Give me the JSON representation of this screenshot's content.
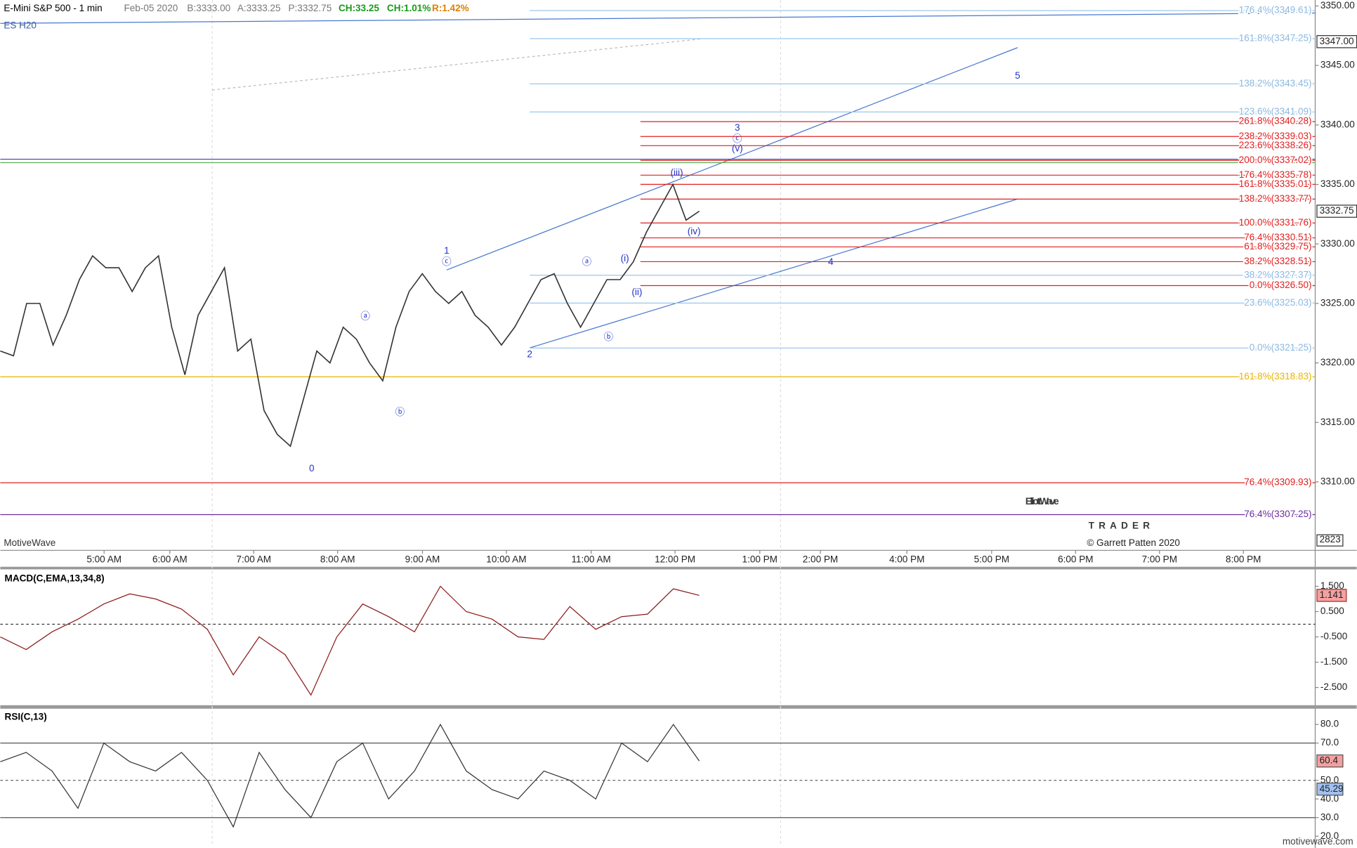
{
  "header": {
    "symbol": "E-Mini S&P 500 - 1 min",
    "date": "Feb-05 2020",
    "bid": "B:3333.00",
    "ask": "A:3333.25",
    "price": "P:3332.75",
    "change": "CH:33.25",
    "change_pct": "CH:1.01%",
    "range": "R:1.42%",
    "contract": "ES H20"
  },
  "price_panel": {
    "ylim": [
      3304.25,
      3350.5
    ],
    "yticks": [
      {
        "value": 3350,
        "label": "3350.00"
      },
      {
        "value": 3345,
        "label": "3345.00"
      },
      {
        "value": 3340,
        "label": "3340.00"
      },
      {
        "value": 3335,
        "label": "3335.00"
      },
      {
        "value": 3330,
        "label": "3330.00"
      },
      {
        "value": 3325,
        "label": "3325.00"
      },
      {
        "value": 3320,
        "label": "3320.00"
      },
      {
        "value": 3315,
        "label": "3315.00"
      },
      {
        "value": 3310,
        "label": "3310.00"
      }
    ],
    "tags": [
      {
        "value": 3347,
        "label": "3347.00"
      },
      {
        "value": 3332.75,
        "label": "3332.75"
      }
    ],
    "volume_tag": "2823",
    "price": [
      3321,
      3320.6,
      3325,
      3325,
      3321.5,
      3324,
      3327,
      3329,
      3328,
      3328,
      3326,
      3328,
      3329,
      3323,
      3319,
      3324,
      3326,
      3328,
      3321,
      3322,
      3316,
      3314,
      3313,
      3317,
      3321,
      3320,
      3323,
      3322,
      3320,
      3318.5,
      3323,
      3326,
      3327.5,
      3326,
      3325,
      3326,
      3324,
      3323,
      3321.5,
      3323,
      3325,
      3327,
      3327.5,
      3325,
      3323,
      3325,
      3327,
      3327,
      3328.5,
      3331,
      3333,
      3335,
      3332,
      3332.75
    ],
    "fib_upper": [
      {
        "label": "176.4%(3349.61)",
        "value": 3349.61
      },
      {
        "label": "161.8%(3347.25)",
        "value": 3347.25
      },
      {
        "label": "138.2%(3343.45)",
        "value": 3343.45
      },
      {
        "label": "123.6%(3341.09)",
        "value": 3341.09
      },
      {
        "label": "38.2%(3327.37)",
        "value": 3327.37
      },
      {
        "label": "23.6%(3325.03)",
        "value": 3325.03
      },
      {
        "label": "0.0%(3321.25)",
        "value": 3321.25
      }
    ],
    "fib_red": [
      {
        "label": "261.8%(3340.28)",
        "value": 3340.28
      },
      {
        "label": "238.2%(3339.03)",
        "value": 3339.03
      },
      {
        "label": "223.6%(3338.26)",
        "value": 3338.26
      },
      {
        "label": "200.0%(3337.02)",
        "value": 3337.02
      },
      {
        "label": "176.4%(3335.78)",
        "value": 3335.78
      },
      {
        "label": "161.8%(3335.01)",
        "value": 3335.01
      },
      {
        "label": "138.2%(3333.77)",
        "value": 3333.77
      },
      {
        "label": "100.0%(3331.76)",
        "value": 3331.76
      },
      {
        "label": "76.4%(3330.51)",
        "value": 3330.51
      },
      {
        "label": "61.8%(3329.75)",
        "value": 3329.75
      },
      {
        "label": "38.2%(3328.51)",
        "value": 3328.51
      },
      {
        "label": "0.0%(3326.50)",
        "value": 3326.5
      }
    ],
    "fib_full": [
      {
        "label": "161.8%(3318.83)",
        "value": 3318.83,
        "color": "#e8b400"
      },
      {
        "label": "76.4%(3309.93)",
        "value": 3309.93,
        "color": "#e02020"
      },
      {
        "label": "76.4%(3307.25)",
        "value": 3307.25,
        "color": "#6a2ca0"
      }
    ],
    "wave_labels": [
      "0",
      "1",
      "ⓒ",
      "2",
      "ⓐ",
      "ⓑ",
      "ⓐ",
      "ⓑ",
      "(i)",
      "(ii)",
      "(iii)",
      "(iv)",
      "3",
      "ⓒ",
      "(v)",
      "4",
      "5"
    ],
    "watermark": "MotiveWave",
    "logo_top": "ElliottWave",
    "logo_bottom": "TRADER",
    "copyright": "© Garrett Patten 2020",
    "time_labels": [
      "5:00 AM",
      "6:00 AM",
      "7:00 AM",
      "8:00 AM",
      "9:00 AM",
      "10:00 AM",
      "11:00 AM",
      "12:00 PM",
      "1:00 PM",
      "2:00 PM",
      "4:00 PM",
      "5:00 PM",
      "6:00 PM",
      "7:00 PM",
      "8:00 PM"
    ]
  },
  "macd": {
    "title": "MACD(C,EMA,13,34,8)",
    "ylim": [
      -3.2,
      2.1
    ],
    "yticks": [
      {
        "value": 1.5,
        "label": "1.500"
      },
      {
        "value": 0.5,
        "label": "0.500"
      },
      {
        "value": -0.5,
        "label": "-0.500"
      },
      {
        "value": -1.5,
        "label": "-1.500"
      },
      {
        "value": -2.5,
        "label": "-2.500"
      }
    ],
    "tag": {
      "value": 1.141,
      "label": "1.141"
    },
    "values": [
      -0.5,
      -1.0,
      -0.3,
      0.2,
      0.8,
      1.2,
      1.0,
      0.6,
      -0.2,
      -2.0,
      -0.5,
      -1.2,
      -2.8,
      -0.5,
      0.8,
      0.3,
      -0.3,
      1.5,
      0.5,
      0.2,
      -0.5,
      -0.6,
      0.7,
      -0.2,
      0.3,
      0.4,
      1.4,
      1.141
    ]
  },
  "rsi": {
    "title": "RSI(C,13)",
    "ylim": [
      16,
      88
    ],
    "yticks": [
      {
        "value": 80,
        "label": "80.0"
      },
      {
        "value": 70,
        "label": "70.0"
      },
      {
        "value": 50,
        "label": "50.0"
      },
      {
        "value": 40,
        "label": "40.0"
      },
      {
        "value": 30,
        "label": "30.0"
      },
      {
        "value": 20,
        "label": "20.0"
      }
    ],
    "tags": [
      {
        "value": 60.4,
        "label": "60.4"
      },
      {
        "value": 45.29,
        "label": "45.29"
      }
    ],
    "values": [
      60,
      65,
      55,
      35,
      70,
      60,
      55,
      65,
      50,
      25,
      65,
      45,
      30,
      60,
      70,
      40,
      55,
      80,
      55,
      45,
      40,
      55,
      50,
      40,
      70,
      60,
      80,
      60.4
    ]
  },
  "footer": "motivewave.com"
}
